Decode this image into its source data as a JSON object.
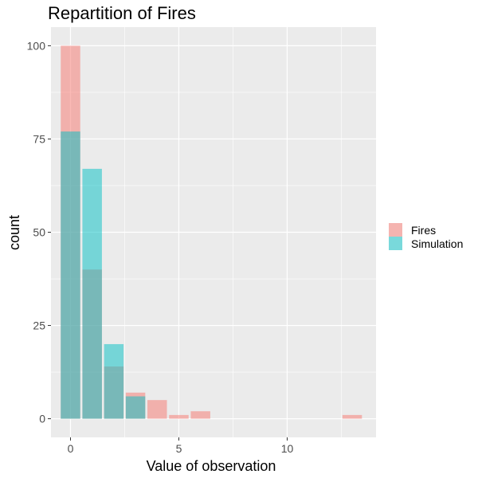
{
  "chart_data": {
    "type": "bar",
    "title": "Repartition of Fires",
    "xlabel": "Value of observation",
    "ylabel": "count",
    "x": [
      0,
      1,
      2,
      3,
      4,
      5,
      6,
      13
    ],
    "series": [
      {
        "name": "Fires",
        "color": "#F8766D",
        "values": [
          100,
          40,
          14,
          7,
          5,
          1,
          2,
          1
        ]
      },
      {
        "name": "Simulation",
        "color": "#00BFC4",
        "values": [
          77,
          67,
          20,
          6,
          0,
          0,
          0,
          0
        ]
      }
    ],
    "xlim": [
      -0.9,
      14.1
    ],
    "ylim": [
      -5,
      105
    ],
    "x_ticks": [
      0,
      5,
      10
    ],
    "y_ticks": [
      0,
      25,
      50,
      75,
      100
    ],
    "x_tick_labels": [
      "0",
      "5",
      "10"
    ],
    "y_tick_labels": [
      "0",
      "25",
      "50",
      "75",
      "100"
    ],
    "bar_width": 0.9,
    "panel_background": "#EBEBEB",
    "grid": true,
    "legend_position": "right",
    "opacity": 0.5
  }
}
